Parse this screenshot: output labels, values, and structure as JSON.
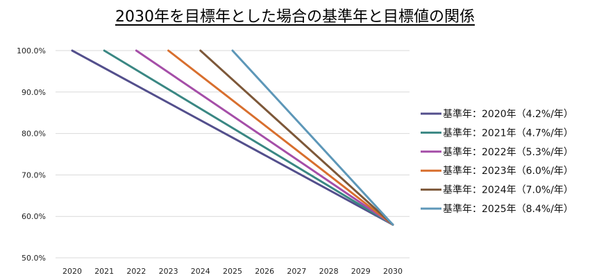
{
  "chart_data": {
    "type": "line",
    "title": "2030年を目標年とした場合の基準年と目標値の関係",
    "xlabel": "",
    "ylabel": "",
    "x": [
      2020,
      2021,
      2022,
      2023,
      2024,
      2025,
      2026,
      2027,
      2028,
      2029,
      2030
    ],
    "ylim": [
      50,
      100
    ],
    "yticks": [
      50,
      60,
      70,
      80,
      90,
      100
    ],
    "ytick_labels": [
      "50.0%",
      "60.0%",
      "70.0%",
      "80.0%",
      "90.0%",
      "100.0%"
    ],
    "grid": true,
    "legend_position": "right",
    "series": [
      {
        "name": "基準年：2020年（4.2%/年）",
        "color": "#534f8c",
        "points": [
          [
            2020,
            100
          ],
          [
            2030,
            58
          ]
        ]
      },
      {
        "name": "基準年：2021年（4.7%/年）",
        "color": "#3a8783",
        "points": [
          [
            2021,
            100
          ],
          [
            2030,
            58
          ]
        ]
      },
      {
        "name": "基準年：2022年（5.3%/年）",
        "color": "#a54ea8",
        "points": [
          [
            2022,
            100
          ],
          [
            2030,
            58
          ]
        ]
      },
      {
        "name": "基準年：2023年（6.0%/年）",
        "color": "#d86f2e",
        "points": [
          [
            2023,
            100
          ],
          [
            2030,
            58
          ]
        ]
      },
      {
        "name": "基準年：2024年（7.0%/年）",
        "color": "#7d5839",
        "points": [
          [
            2024,
            100
          ],
          [
            2030,
            58
          ]
        ]
      },
      {
        "name": "基準年：2025年（8.4%/年）",
        "color": "#5d97b8",
        "points": [
          [
            2025,
            100
          ],
          [
            2030,
            58
          ]
        ]
      }
    ]
  }
}
